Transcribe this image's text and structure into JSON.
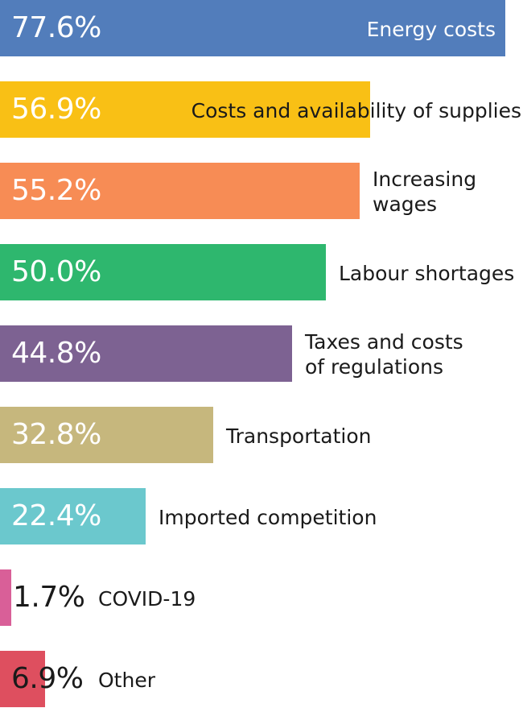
{
  "chart_data": {
    "type": "bar",
    "orientation": "horizontal",
    "title": "",
    "xlabel": "",
    "ylabel": "",
    "xlim": [
      0,
      80
    ],
    "grid": false,
    "legend": "none",
    "categories": [
      "Energy costs",
      "Costs and availability of supplies",
      "Increasing wages",
      "Labour shortages",
      "Taxes and costs of regulations",
      "Transportation",
      "Imported competition",
      "COVID-19",
      "Other"
    ],
    "category_lines": [
      [
        "Energy costs"
      ],
      [
        "Costs and availability of supplies"
      ],
      [
        "Increasing",
        "wages"
      ],
      [
        "Labour shortages"
      ],
      [
        "Taxes and costs",
        "of regulations"
      ],
      [
        "Transportation"
      ],
      [
        "Imported competition"
      ],
      [
        "COVID-19"
      ],
      [
        "Other"
      ]
    ],
    "values": [
      77.6,
      56.9,
      55.2,
      50.0,
      44.8,
      32.8,
      22.4,
      1.7,
      6.9
    ],
    "value_labels": [
      "77.6%",
      "56.9%",
      "55.2%",
      "50.0%",
      "44.8%",
      "32.8%",
      "22.4%",
      "1.7%",
      "6.9%"
    ],
    "colors": [
      "#527dbb",
      "#f9c015",
      "#f78c55",
      "#2eb76e",
      "#7d6292",
      "#c6b77d",
      "#6bc8cd",
      "#d95f98",
      "#de4f5f"
    ]
  }
}
